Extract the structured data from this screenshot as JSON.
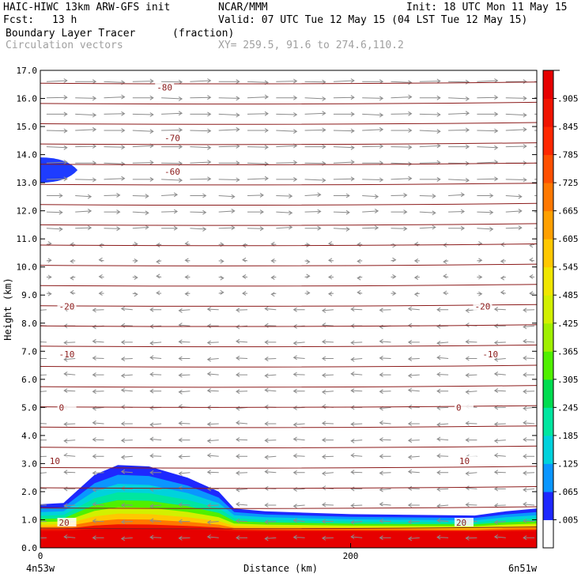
{
  "header": {
    "model": "HAIC-HIWC 13km ARW-GFS init",
    "org": "NCAR/MMM",
    "init": "Init: 18 UTC Mon 11 May 15",
    "fcst_label": "Fcst:",
    "fcst_value": "13 h",
    "valid": "Valid: 07 UTC Tue 12 May 15 (04 LST Tue 12 May 15)",
    "field": "Boundary Layer Tracer",
    "units": "(fraction)",
    "vectors": "Circulation vectors",
    "xy": "XY= 259.5, 91.6 to 274.6,110.2"
  },
  "chart_data": {
    "type": "heatmap",
    "title": "Boundary Layer Tracer",
    "ylabel": "Height (km)",
    "xlabel": "Distance (km)",
    "ylim": [
      0,
      17
    ],
    "xlim": [
      0,
      320
    ],
    "y_ticks": [
      "0.0",
      "1.0",
      "2.0",
      "3.0",
      "4.0",
      "5.0",
      "6.0",
      "7.0",
      "8.0",
      "9.0",
      "10.0",
      "11.0",
      "12.0",
      "13.0",
      "14.0",
      "15.0",
      "16.0",
      "17.0"
    ],
    "x_ticks": [
      {
        "value": 0,
        "label": "0"
      },
      {
        "value": 200,
        "label": "200"
      }
    ],
    "x_end_labels": {
      "left": "4n53w",
      "right": "6n51w"
    },
    "colorbar": {
      "labels": [
        ".005",
        ".065",
        ".125",
        ".185",
        ".245",
        ".305",
        ".365",
        ".425",
        ".485",
        ".545",
        ".605",
        ".665",
        ".725",
        ".785",
        ".845",
        ".905"
      ],
      "colors": [
        "#ffffff",
        "#1e28ff",
        "#0a96ff",
        "#00d2dc",
        "#00e6a0",
        "#00dc50",
        "#50f000",
        "#a0f000",
        "#d2f000",
        "#f0e600",
        "#ffc800",
        "#ffa000",
        "#ff7800",
        "#ff5000",
        "#ff2800",
        "#f01400",
        "#e60000"
      ]
    },
    "temperature_contours": [
      {
        "value": -80,
        "height": 16.4,
        "label_x": 75
      },
      {
        "value": -70,
        "height": 14.6,
        "label_x": 80
      },
      {
        "value": -60,
        "height": 13.4,
        "label_x": 80
      },
      {
        "value": -20,
        "height": 8.6,
        "label_x": 12
      },
      {
        "value": -20,
        "height": 8.6,
        "label_x": 280
      },
      {
        "value": -10,
        "height": 6.9,
        "label_x": 12
      },
      {
        "value": -10,
        "height": 6.9,
        "label_x": 285
      },
      {
        "value": 0,
        "height": 5.0,
        "label_x": 12
      },
      {
        "value": 0,
        "height": 5.0,
        "label_x": 268
      },
      {
        "value": 10,
        "height": 3.1,
        "label_x": 6
      },
      {
        "value": 10,
        "height": 3.1,
        "label_x": 270
      },
      {
        "value": 20,
        "height": 0.9,
        "label_x": 12
      },
      {
        "value": 20,
        "height": 0.9,
        "label_x": 268
      }
    ],
    "tracer_top_profile": [
      {
        "x": 0,
        "top": 1.55
      },
      {
        "x": 15,
        "top": 1.6
      },
      {
        "x": 35,
        "top": 2.6
      },
      {
        "x": 50,
        "top": 2.95
      },
      {
        "x": 70,
        "top": 2.9
      },
      {
        "x": 95,
        "top": 2.5
      },
      {
        "x": 115,
        "top": 2.0
      },
      {
        "x": 125,
        "top": 1.4
      },
      {
        "x": 145,
        "top": 1.3
      },
      {
        "x": 200,
        "top": 1.2
      },
      {
        "x": 280,
        "top": 1.15
      },
      {
        "x": 300,
        "top": 1.3
      },
      {
        "x": 320,
        "top": 1.4
      }
    ],
    "upper_patch": {
      "x_end": 24,
      "y_min": 13.0,
      "y_max": 13.9
    }
  }
}
